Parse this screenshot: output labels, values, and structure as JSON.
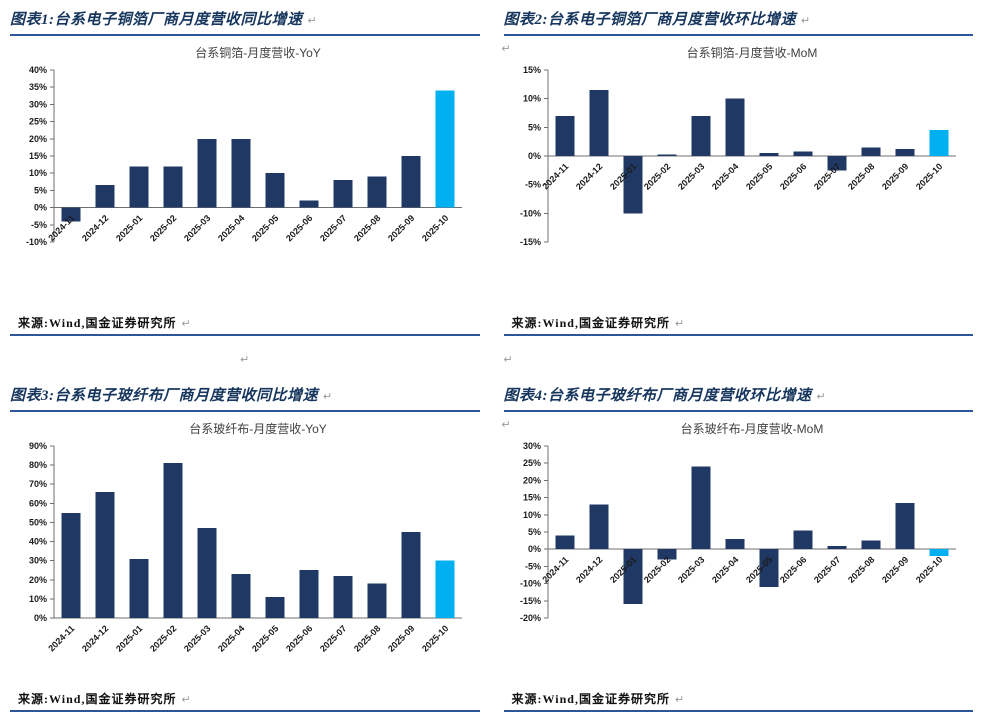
{
  "page": {
    "paragraph_mark": "↵",
    "colors": {
      "bar": "#1F3864",
      "highlight": "#00B0F0",
      "header_text": "#17365D",
      "rule": "#2E5597"
    }
  },
  "sections": [
    {
      "header": "图表1:台系电子铜箔厂商月度营收同比增速",
      "source": "来源:Wind,国金证券研究所"
    },
    {
      "header": "图表2:台系电子铜箔厂商月度营收环比增速",
      "source": "来源:Wind,国金证券研究所"
    },
    {
      "header": "图表3:台系电子玻纤布厂商月度营收同比增速",
      "source": "来源:Wind,国金证券研究所"
    },
    {
      "header": "图表4:台系电子玻纤布厂商月度营收环比增速",
      "source": "来源:Wind,国金证券研究所"
    }
  ],
  "chart_data": [
    {
      "type": "bar",
      "title": "台系铜箔-月度营收-YoY",
      "categories": [
        "2024-11",
        "2024-12",
        "2025-01",
        "2025-02",
        "2025-03",
        "2025-04",
        "2025-05",
        "2025-06",
        "2025-07",
        "2025-08",
        "2025-09",
        "2025-10"
      ],
      "values": [
        -4,
        6.5,
        12,
        12,
        20,
        20,
        10,
        2,
        8,
        9,
        15,
        34
      ],
      "ylim": [
        -10,
        40
      ],
      "ytick_step": 5,
      "highlight_index": 11,
      "xlabel": "",
      "ylabel": "",
      "grid": false,
      "legend": "none"
    },
    {
      "type": "bar",
      "title": "台系铜箔-月度营收-MoM",
      "categories": [
        "2024-11",
        "2024-12",
        "2025-01",
        "2025-02",
        "2025-03",
        "2025-04",
        "2025-05",
        "2025-06",
        "2025-07",
        "2025-08",
        "2025-09",
        "2025-10"
      ],
      "values": [
        7,
        11.5,
        -10,
        0.3,
        7,
        10,
        0.5,
        0.8,
        -2.5,
        1.5,
        1.2,
        4.5
      ],
      "ylim": [
        -15,
        15
      ],
      "ytick_step": 5,
      "highlight_index": 11,
      "xlabel": "",
      "ylabel": "",
      "grid": false,
      "legend": "none"
    },
    {
      "type": "bar",
      "title": "台系玻纤布-月度营收-YoY",
      "categories": [
        "2024-11",
        "2024-12",
        "2025-01",
        "2025-02",
        "2025-03",
        "2025-04",
        "2025-05",
        "2025-06",
        "2025-07",
        "2025-08",
        "2025-09",
        "2025-10"
      ],
      "values": [
        55,
        66,
        31,
        81,
        47,
        23,
        11,
        25,
        22,
        18,
        45,
        30
      ],
      "ylim": [
        0,
        90
      ],
      "ytick_step": 10,
      "highlight_index": 11,
      "xlabel": "",
      "ylabel": "",
      "grid": false,
      "legend": "none"
    },
    {
      "type": "bar",
      "title": "台系玻纤布-月度营收-MoM",
      "categories": [
        "2024-11",
        "2024-12",
        "2025-01",
        "2025-02",
        "2025-03",
        "2025-04",
        "2025-05",
        "2025-06",
        "2025-07",
        "2025-08",
        "2025-09",
        "2025-10"
      ],
      "values": [
        4,
        13,
        -16,
        -3,
        24,
        3,
        -11,
        5.5,
        1,
        2.5,
        13.5,
        -2
      ],
      "ylim": [
        -20,
        30
      ],
      "ytick_step": 5,
      "highlight_index": 11,
      "xlabel": "",
      "ylabel": "",
      "grid": false,
      "legend": "none"
    }
  ]
}
